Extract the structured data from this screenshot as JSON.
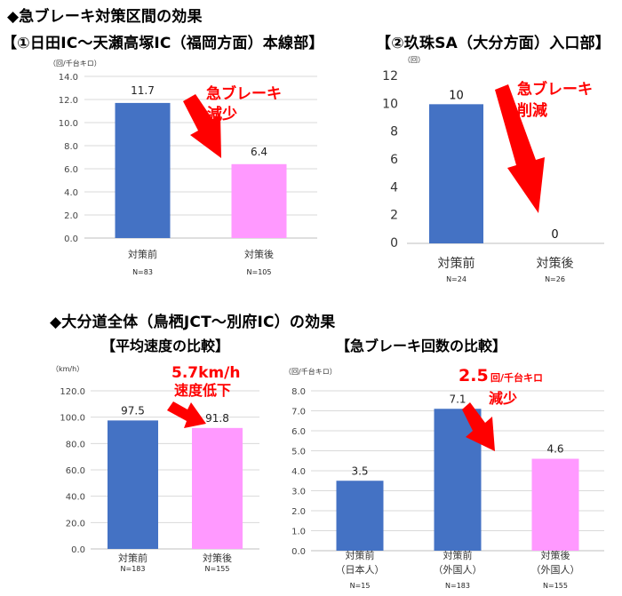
{
  "headings": {
    "section1": "◆急ブレーキ対策区間の効果",
    "chart1_title": "【①日田IC～天瀬高塚IC（福岡方面）本線部】",
    "chart2_title": "【②玖珠SA（大分方面）入口部】",
    "section2": "◆大分道全体（鳥栖JCT～別府IC）の効果",
    "chart3_title": "【平均速度の比較】",
    "chart4_title": "【急ブレーキ回数の比較】"
  },
  "colors": {
    "blue": "#4472c4",
    "pink": "#ff99ff",
    "arrow": "#ff0000",
    "annotation": "#ff0000",
    "grid": "#d9d9d9"
  },
  "chart_data": [
    {
      "type": "bar",
      "unit_label": "（回/千台キロ）",
      "categories": [
        "対策前",
        "対策後"
      ],
      "n_labels": [
        "N=83",
        "N=105"
      ],
      "values": [
        11.7,
        6.4
      ],
      "value_labels": [
        "11.7",
        "6.4"
      ],
      "ylim": [
        0,
        14
      ],
      "yticks": [
        "0.0",
        "2.0",
        "4.0",
        "6.0",
        "8.0",
        "10.0",
        "12.0",
        "14.0"
      ],
      "bar_colors": [
        "#4472c4",
        "#ff99ff"
      ],
      "grid": true,
      "annotation": [
        "急ブレーキ",
        "減少"
      ]
    },
    {
      "type": "bar",
      "unit_label": "（回）",
      "categories": [
        "対策前",
        "対策後"
      ],
      "n_labels": [
        "N=24",
        "N=26"
      ],
      "values": [
        10,
        0
      ],
      "value_labels": [
        "10",
        "0"
      ],
      "ylim": [
        0,
        12
      ],
      "yticks": [
        "0",
        "2",
        "4",
        "6",
        "8",
        "10",
        "12"
      ],
      "bar_colors": [
        "#4472c4",
        "#ff99ff"
      ],
      "grid": false,
      "annotation": [
        "急ブレーキ",
        "削減"
      ]
    },
    {
      "type": "bar",
      "unit_label": "（km/h）",
      "categories": [
        "対策前",
        "対策後"
      ],
      "n_labels": [
        "N=183",
        "N=155"
      ],
      "values": [
        97.5,
        91.8
      ],
      "value_labels": [
        "97.5",
        "91.8"
      ],
      "ylim": [
        0,
        120
      ],
      "yticks": [
        "0.0",
        "20.0",
        "40.0",
        "60.0",
        "80.0",
        "100.0",
        "120.0"
      ],
      "bar_colors": [
        "#4472c4",
        "#ff99ff"
      ],
      "grid": true,
      "annotation": [
        "5.7km/h",
        "速度低下"
      ]
    },
    {
      "type": "bar",
      "unit_label": "（回/千台キロ）",
      "categories": [
        "対策前",
        "対策前",
        "対策後"
      ],
      "category_sublabels": [
        "（日本人）",
        "（外国人）",
        "（外国人）"
      ],
      "n_labels": [
        "N=15",
        "N=183",
        "N=155"
      ],
      "values": [
        3.5,
        7.1,
        4.6
      ],
      "value_labels": [
        "3.5",
        "7.1",
        "4.6"
      ],
      "ylim": [
        0,
        8
      ],
      "yticks": [
        "0.0",
        "1.0",
        "2.0",
        "3.0",
        "4.0",
        "5.0",
        "6.0",
        "7.0",
        "8.0"
      ],
      "bar_colors": [
        "#4472c4",
        "#4472c4",
        "#ff99ff"
      ],
      "grid": true,
      "annotation_big": "2.5",
      "annotation_small": "回/千台キロ",
      "annotation_line2": "減少"
    }
  ]
}
